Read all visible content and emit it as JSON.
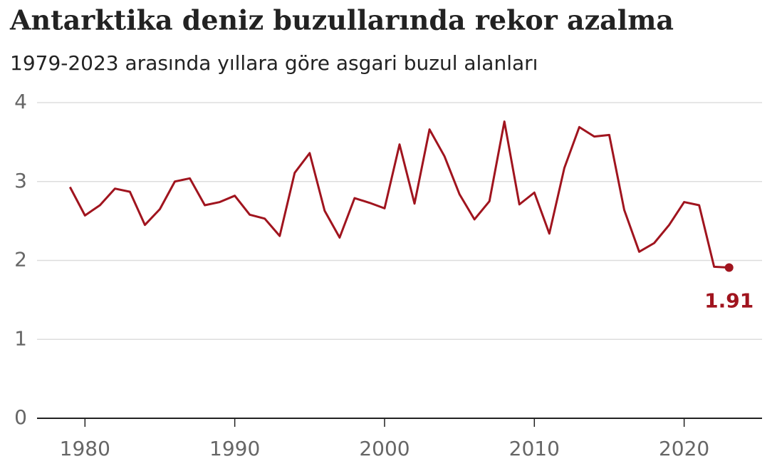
{
  "chart_data": {
    "type": "line",
    "title": "Antarktika deniz buzullarında rekor azalma",
    "subtitle": "1979-2023 arasında yıllara göre asgari buzul alanları",
    "x": [
      1979,
      1980,
      1981,
      1982,
      1983,
      1984,
      1985,
      1986,
      1987,
      1988,
      1989,
      1990,
      1991,
      1992,
      1993,
      1994,
      1995,
      1996,
      1997,
      1998,
      1999,
      2000,
      2001,
      2002,
      2003,
      2004,
      2005,
      2006,
      2007,
      2008,
      2009,
      2010,
      2011,
      2012,
      2013,
      2014,
      2015,
      2016,
      2017,
      2018,
      2019,
      2020,
      2021,
      2022,
      2023
    ],
    "series": [
      {
        "color": "#a0141e",
        "values": [
          2.93,
          2.57,
          2.7,
          2.91,
          2.87,
          2.45,
          2.65,
          3.0,
          3.04,
          2.7,
          2.74,
          2.82,
          2.58,
          2.53,
          2.31,
          3.11,
          3.36,
          2.63,
          2.29,
          2.79,
          2.73,
          2.66,
          3.47,
          2.72,
          3.66,
          3.32,
          2.84,
          2.52,
          2.75,
          3.76,
          2.71,
          2.86,
          2.34,
          3.17,
          3.69,
          3.57,
          3.59,
          2.64,
          2.11,
          2.22,
          2.45,
          2.74,
          2.7,
          1.92,
          1.91
        ]
      }
    ],
    "xlim": [
      1976.8,
      2025.2
    ],
    "xticks": [
      1980,
      1990,
      2000,
      2010,
      2020
    ],
    "ylim": [
      0,
      4
    ],
    "yticks": [
      0,
      1,
      2,
      3,
      4
    ],
    "grid": true
  }
}
